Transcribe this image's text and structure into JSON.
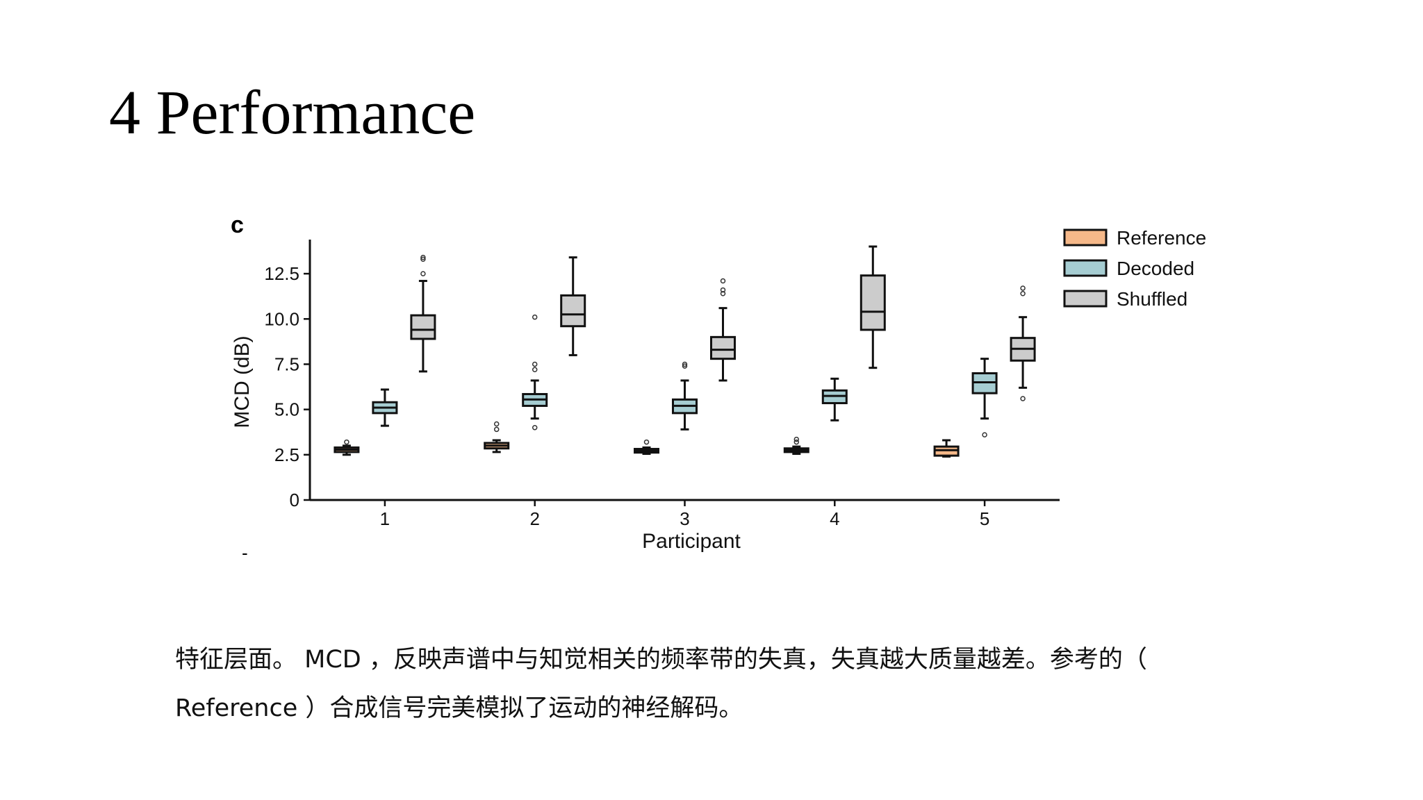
{
  "slide": {
    "title": "4 Performance",
    "caption": "特征层面。 MCD ，反映声谱中与知觉相关的频率带的失真，失真越大质量越差。参考的（ Reference ）合成信号完美模拟了运动的神经解码。"
  },
  "chart_data": {
    "type": "boxplot",
    "panel_label": "c",
    "stray_mark": "-",
    "xlabel": "Participant",
    "ylabel": "MCD (dB)",
    "ylim": [
      0,
      14
    ],
    "yticks": [
      0,
      2.5,
      5.0,
      7.5,
      10.0,
      12.5
    ],
    "ytick_labels": [
      "0",
      "2.5",
      "5.0",
      "7.5",
      "10.0",
      "12.5"
    ],
    "categories": [
      "1",
      "2",
      "3",
      "4",
      "5"
    ],
    "legend_position": "top-right",
    "grid": false,
    "series": [
      {
        "name": "Reference",
        "color": "#f5b889",
        "boxes": [
          {
            "whislo": 2.5,
            "q1": 2.65,
            "med": 2.78,
            "q3": 2.9,
            "whishi": 3.0,
            "fliers": [
              3.2
            ]
          },
          {
            "whislo": 2.65,
            "q1": 2.85,
            "med": 3.0,
            "q3": 3.15,
            "whishi": 3.3,
            "fliers": [
              3.9,
              4.2
            ]
          },
          {
            "whislo": 2.55,
            "q1": 2.62,
            "med": 2.72,
            "q3": 2.82,
            "whishi": 2.9,
            "fliers": [
              3.2
            ]
          },
          {
            "whislo": 2.55,
            "q1": 2.65,
            "med": 2.75,
            "q3": 2.85,
            "whishi": 2.95,
            "fliers": [
              3.2,
              3.35
            ]
          },
          {
            "whislo": 2.4,
            "q1": 2.45,
            "med": 2.75,
            "q3": 2.95,
            "whishi": 3.3,
            "fliers": []
          }
        ]
      },
      {
        "name": "Decoded",
        "color": "#a6cdd2",
        "boxes": [
          {
            "whislo": 4.1,
            "q1": 4.8,
            "med": 5.1,
            "q3": 5.4,
            "whishi": 6.1,
            "fliers": []
          },
          {
            "whislo": 4.5,
            "q1": 5.2,
            "med": 5.55,
            "q3": 5.85,
            "whishi": 6.6,
            "fliers": [
              4.0,
              7.2,
              7.5,
              10.1
            ]
          },
          {
            "whislo": 3.9,
            "q1": 4.8,
            "med": 5.2,
            "q3": 5.55,
            "whishi": 6.6,
            "fliers": [
              7.4,
              7.5
            ]
          },
          {
            "whislo": 4.4,
            "q1": 5.35,
            "med": 5.75,
            "q3": 6.05,
            "whishi": 6.7,
            "fliers": []
          },
          {
            "whislo": 4.5,
            "q1": 5.9,
            "med": 6.5,
            "q3": 7.0,
            "whishi": 7.8,
            "fliers": [
              3.6
            ]
          }
        ]
      },
      {
        "name": "Shuffled",
        "color": "#cccccc",
        "boxes": [
          {
            "whislo": 7.1,
            "q1": 8.9,
            "med": 9.4,
            "q3": 10.2,
            "whishi": 12.1,
            "fliers": [
              12.5,
              13.3,
              13.4
            ]
          },
          {
            "whislo": 8.0,
            "q1": 9.6,
            "med": 10.25,
            "q3": 11.3,
            "whishi": 13.4,
            "fliers": []
          },
          {
            "whislo": 6.6,
            "q1": 7.8,
            "med": 8.3,
            "q3": 9.0,
            "whishi": 10.6,
            "fliers": [
              11.4,
              11.6,
              12.1
            ]
          },
          {
            "whislo": 7.3,
            "q1": 9.4,
            "med": 10.4,
            "q3": 12.4,
            "whishi": 14.0,
            "fliers": []
          },
          {
            "whislo": 6.2,
            "q1": 7.7,
            "med": 8.35,
            "q3": 8.95,
            "whishi": 10.1,
            "fliers": [
              5.6,
              11.4,
              11.7
            ]
          }
        ]
      }
    ]
  }
}
